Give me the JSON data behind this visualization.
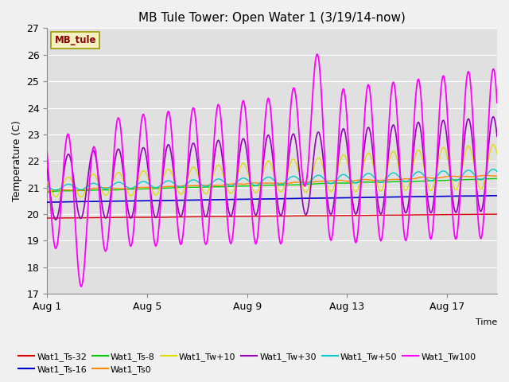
{
  "title": "MB Tule Tower: Open Water 1 (3/19/14-now)",
  "xlabel": "Time",
  "ylabel": "Temperature (C)",
  "ylim": [
    17.0,
    27.0
  ],
  "yticks": [
    17.0,
    18.0,
    19.0,
    20.0,
    21.0,
    22.0,
    23.0,
    24.0,
    25.0,
    26.0,
    27.0
  ],
  "plot_bg_color": "#e0e0e0",
  "fig_bg_color": "#f0f0f0",
  "xtick_labels": [
    "Aug 1",
    "Aug 5",
    "Aug 9",
    "Aug 13",
    "Aug 17"
  ],
  "xtick_positions": [
    0,
    4,
    8,
    12,
    16
  ],
  "legend_label": "MB_tule",
  "series_colors": {
    "Wat1_Ts-32": "#dd0000",
    "Wat1_Ts-16": "#0000cc",
    "Wat1_Ts-8": "#00cc00",
    "Wat1_Ts0": "#ff8800",
    "Wat1_Tw+10": "#dddd00",
    "Wat1_Tw+30": "#9900bb",
    "Wat1_Tw+50": "#00cccc",
    "Wat1_Tw100": "#ff00ff"
  },
  "n_days": 18,
  "n_points": 540,
  "points_per_day": 30
}
